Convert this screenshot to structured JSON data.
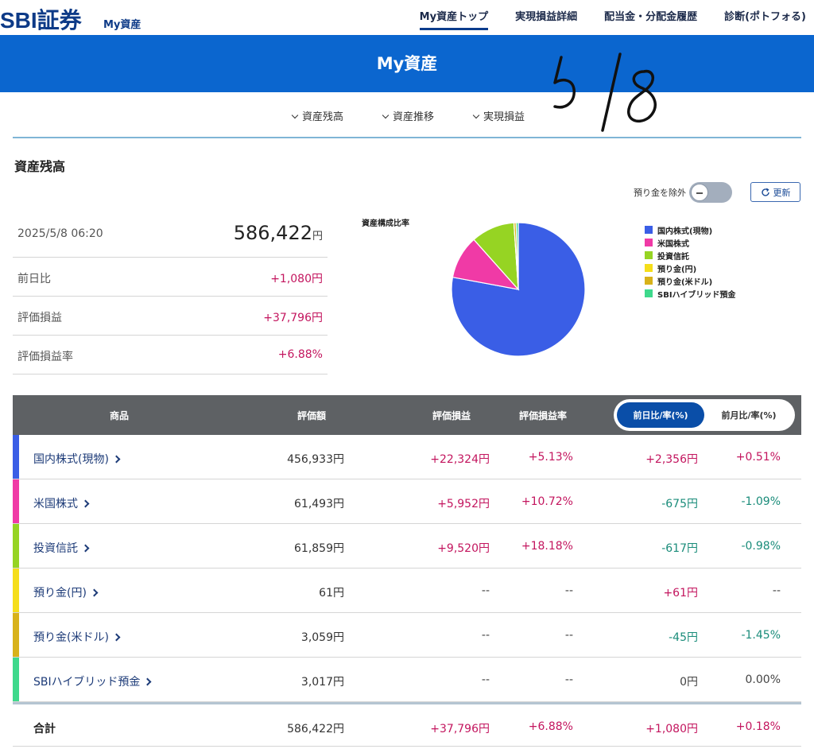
{
  "header": {
    "logo": "SBI証券",
    "logo_sub": "My資産",
    "nav": [
      "My資産トップ",
      "実現損益詳細",
      "配当金・分配金履歴",
      "診断(ポトフォる)"
    ]
  },
  "banner": {
    "title": "My資産"
  },
  "subnav": [
    "資産残高",
    "資産推移",
    "実現損益"
  ],
  "handwritten_note": "5/8",
  "section": {
    "title": "資産残高"
  },
  "controls": {
    "toggle_label": "預り金を除外",
    "toggle_on": false,
    "refresh_label": "更新"
  },
  "summary": {
    "datetime": "2025/5/8 06:20",
    "total": "586,422",
    "total_unit": "円",
    "rows": [
      {
        "label": "前日比",
        "value": "+1,080円"
      },
      {
        "label": "評価損益",
        "value": "+37,796円"
      },
      {
        "label": "評価損益率",
        "value": "+6.88%"
      }
    ]
  },
  "chart_data": {
    "type": "pie",
    "title": "資産構成比率",
    "labels": [
      "国内株式(現物)",
      "米国株式",
      "投資信託",
      "預り金(円)",
      "預り金(米ドル)",
      "SBIハイブリッド預金"
    ],
    "values": [
      456933,
      61493,
      61859,
      61,
      3059,
      3017
    ],
    "colors": [
      "#3a5ee6",
      "#f03aa6",
      "#96d423",
      "#f5de1a",
      "#d8b21a",
      "#3ed98c"
    ],
    "legend_position": "right"
  },
  "table": {
    "headers": {
      "product": "商品",
      "valuation": "評価額",
      "gain": "評価損益",
      "gain_rate": "評価損益率",
      "seg_day": "前日比/率(%)",
      "seg_month": "前月比/率(%)"
    },
    "segment_active": "前日比/率(%)",
    "rows": [
      {
        "name": "国内株式(現物)",
        "valuation": "456,933円",
        "gain": "+22,324円",
        "gain_rate": "+5.13%",
        "day_diff": "+2,356円",
        "day_rate": "+0.51%",
        "color": "#3a5ee6",
        "gain_sign": "pos",
        "rate_sign": "pos",
        "dd_sign": "pos",
        "dr_sign": "pos"
      },
      {
        "name": "米国株式",
        "valuation": "61,493円",
        "gain": "+5,952円",
        "gain_rate": "+10.72%",
        "day_diff": "-675円",
        "day_rate": "-1.09%",
        "color": "#f03aa6",
        "gain_sign": "pos",
        "rate_sign": "pos",
        "dd_sign": "neg",
        "dr_sign": "neg"
      },
      {
        "name": "投資信託",
        "valuation": "61,859円",
        "gain": "+9,520円",
        "gain_rate": "+18.18%",
        "day_diff": "-617円",
        "day_rate": "-0.98%",
        "color": "#96d423",
        "gain_sign": "pos",
        "rate_sign": "pos",
        "dd_sign": "neg",
        "dr_sign": "neg"
      },
      {
        "name": "預り金(円)",
        "valuation": "61円",
        "gain": "--",
        "gain_rate": "--",
        "day_diff": "+61円",
        "day_rate": "--",
        "color": "#f5de1a",
        "gain_sign": "neu",
        "rate_sign": "neu",
        "dd_sign": "pos",
        "dr_sign": "neu"
      },
      {
        "name": "預り金(米ドル)",
        "valuation": "3,059円",
        "gain": "--",
        "gain_rate": "--",
        "day_diff": "-45円",
        "day_rate": "-1.45%",
        "color": "#d8b21a",
        "gain_sign": "neu",
        "rate_sign": "neu",
        "dd_sign": "neg",
        "dr_sign": "neg"
      },
      {
        "name": "SBIハイブリッド預金",
        "valuation": "3,017円",
        "gain": "--",
        "gain_rate": "--",
        "day_diff": "0円",
        "day_rate": "0.00%",
        "color": "#3ed98c",
        "gain_sign": "neu",
        "rate_sign": "neu",
        "dd_sign": "neu",
        "dr_sign": "neu"
      }
    ],
    "total": {
      "name": "合計",
      "valuation": "586,422円",
      "gain": "+37,796円",
      "gain_rate": "+6.88%",
      "day_diff": "+1,080円",
      "day_rate": "+0.18%"
    }
  }
}
